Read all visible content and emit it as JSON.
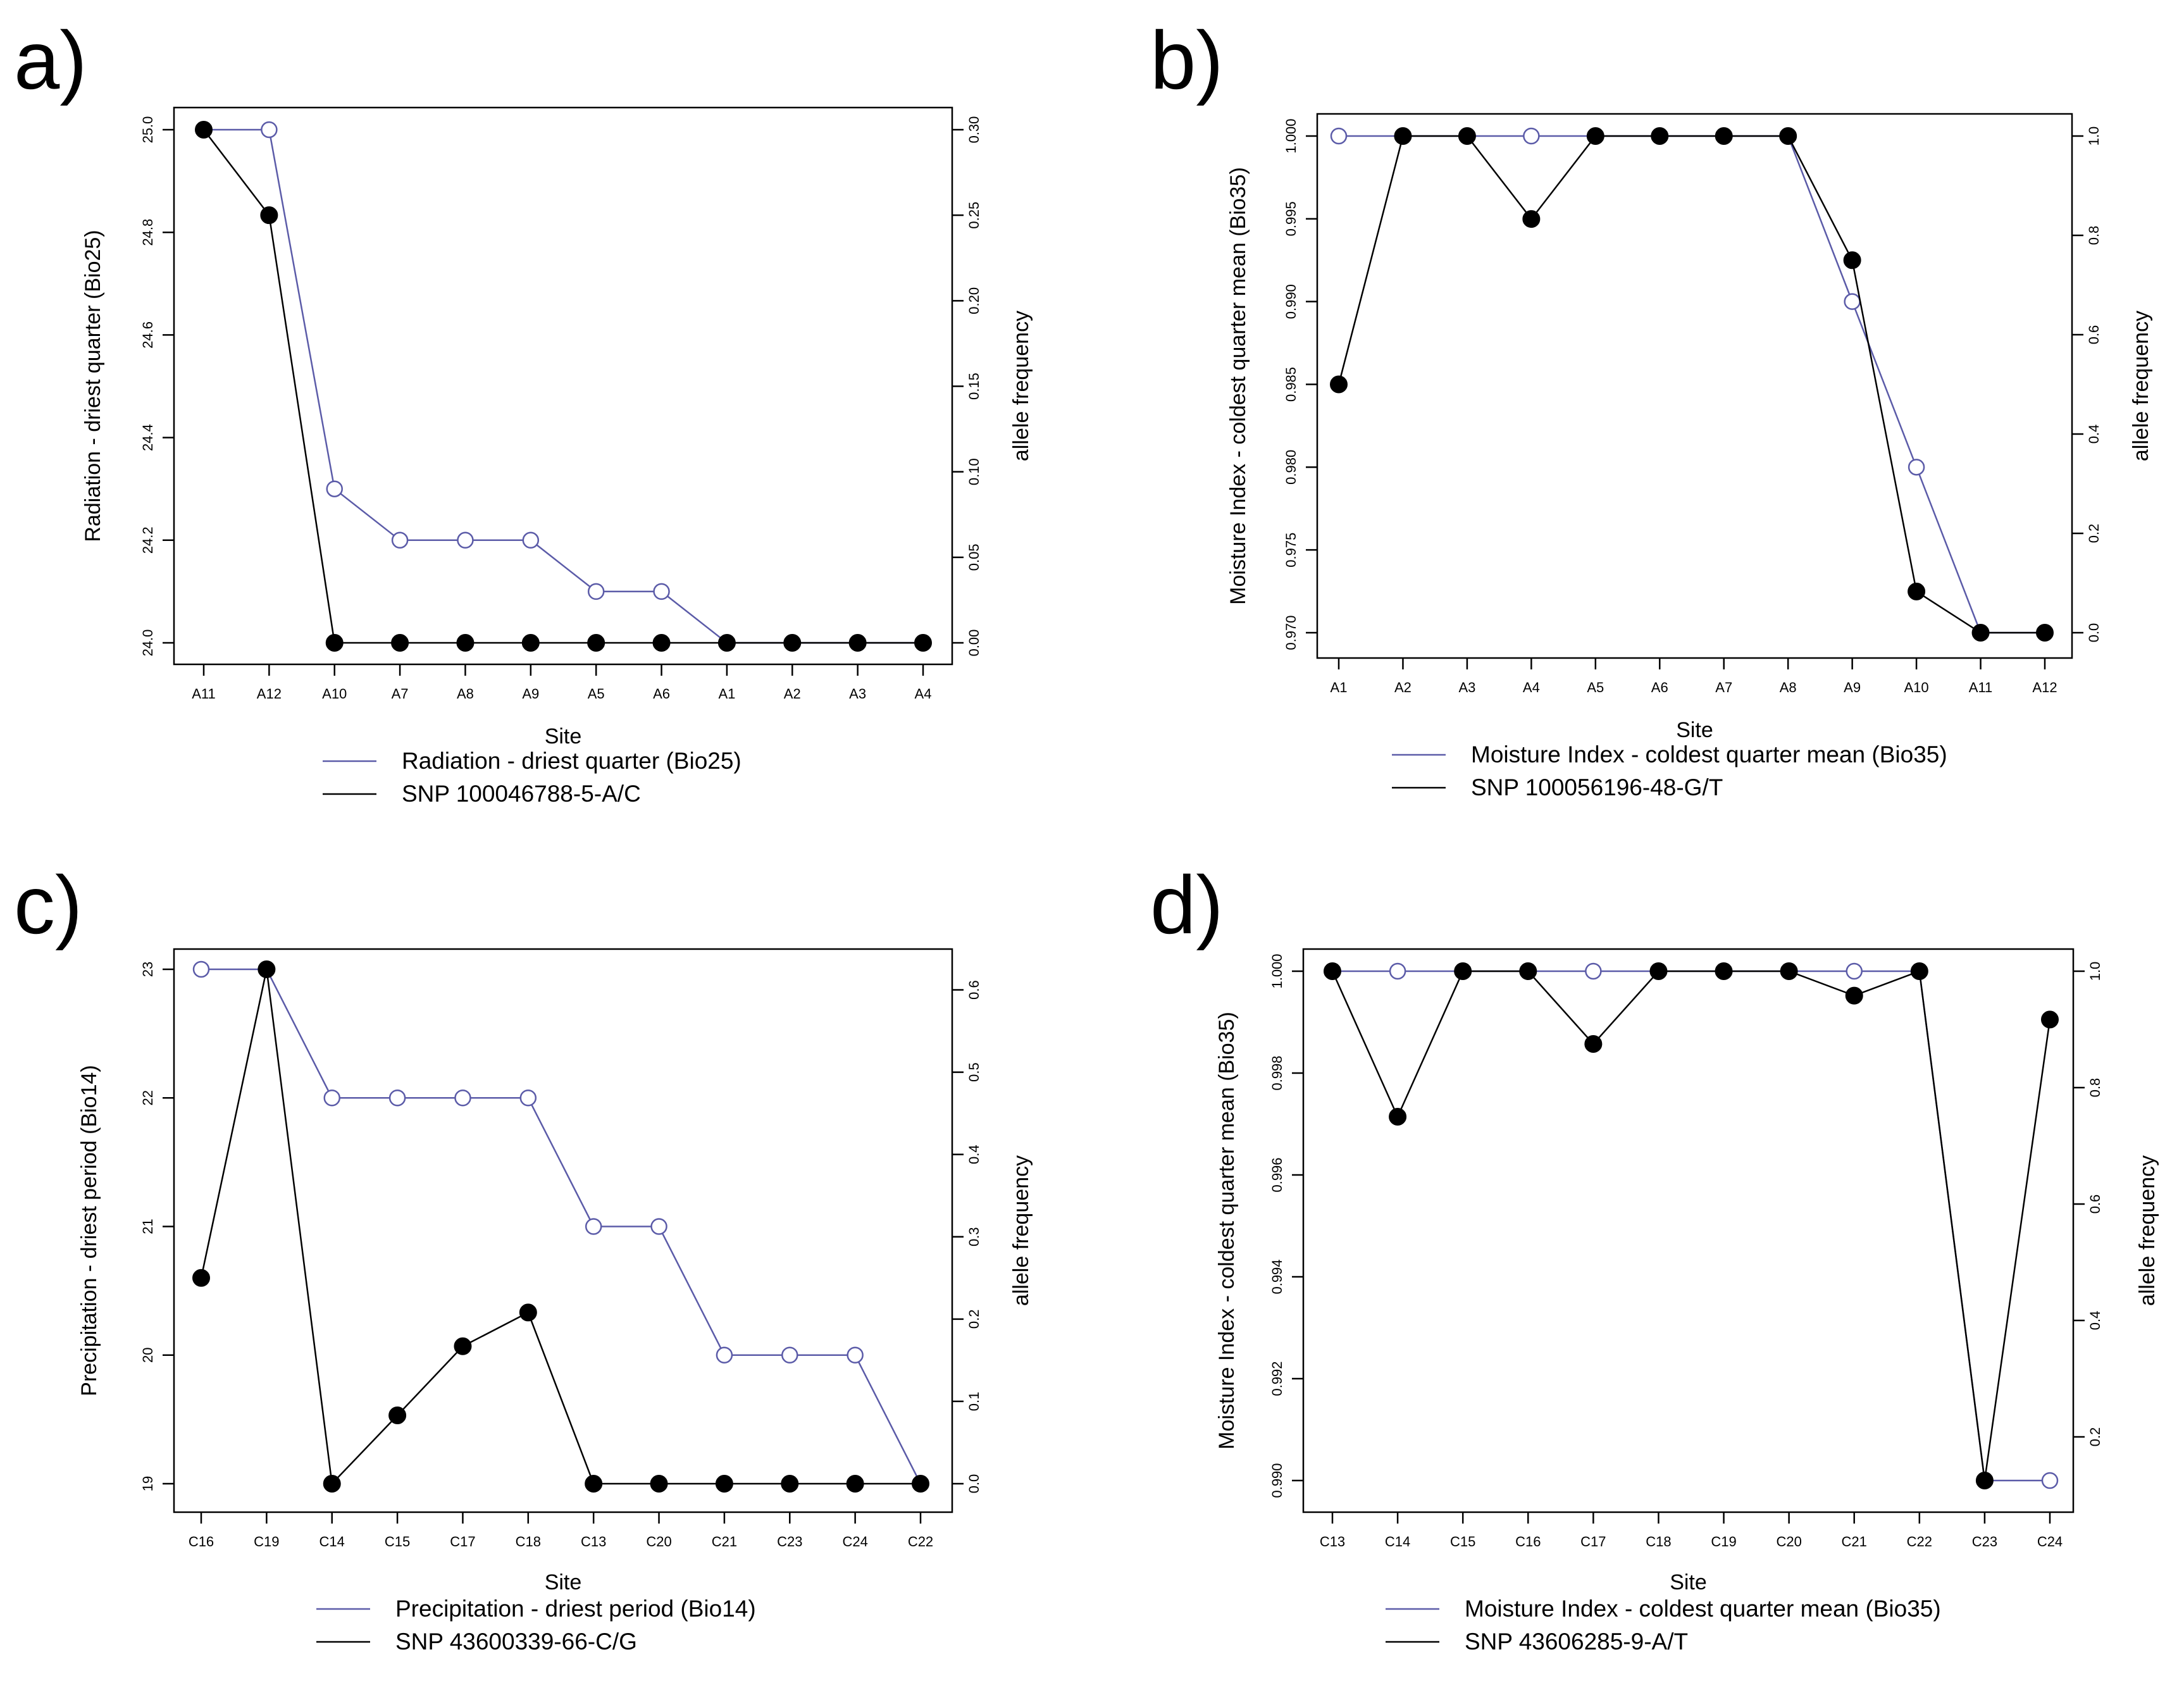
{
  "colors": {
    "bio_series": "#5b5ba8",
    "snp_series": "#000000",
    "open_marker_fill": "#ffffff"
  },
  "chart_data": [
    {
      "panel": "a)",
      "type": "line",
      "xlabel": "Site",
      "ylabel": "Radiation - driest quarter (Bio25)",
      "y2label": "allele frequency",
      "categories": [
        "A11",
        "A12",
        "A10",
        "A7",
        "A8",
        "A9",
        "A5",
        "A6",
        "A1",
        "A2",
        "A3",
        "A4"
      ],
      "ylim": [
        24.0,
        25.0
      ],
      "yticks": [
        "24.0",
        "24.2",
        "24.4",
        "24.6",
        "24.8",
        "25.0"
      ],
      "y2lim": [
        0.0,
        0.3
      ],
      "y2ticks": [
        "0.00",
        "0.05",
        "0.10",
        "0.15",
        "0.20",
        "0.25",
        "0.30"
      ],
      "series": [
        {
          "name": "Radiation - driest quarter (Bio25)",
          "axis": "left",
          "marker": "open",
          "values": [
            25.0,
            25.0,
            24.3,
            24.2,
            24.2,
            24.2,
            24.1,
            24.1,
            24.0,
            24.0,
            24.0,
            24.0
          ]
        },
        {
          "name": "SNP 100046788-5-A/C",
          "axis": "right",
          "marker": "filled",
          "values": [
            0.3,
            0.25,
            0.0,
            0.0,
            0.0,
            0.0,
            0.0,
            0.0,
            0.0,
            0.0,
            0.0,
            0.0
          ]
        }
      ]
    },
    {
      "panel": "b)",
      "type": "line",
      "xlabel": "Site",
      "ylabel": "Moisture Index - coldest quarter mean (Bio35)",
      "y2label": "allele frequency",
      "categories": [
        "A1",
        "A2",
        "A3",
        "A4",
        "A5",
        "A6",
        "A7",
        "A8",
        "A9",
        "A10",
        "A11",
        "A12"
      ],
      "ylim": [
        0.97,
        1.0
      ],
      "yticks": [
        "0.970",
        "0.975",
        "0.980",
        "0.985",
        "0.990",
        "0.995",
        "1.000"
      ],
      "y2lim": [
        0.0,
        1.0
      ],
      "y2ticks": [
        "0.0",
        "0.2",
        "0.4",
        "0.6",
        "0.8",
        "1.0"
      ],
      "series": [
        {
          "name": "Moisture Index - coldest quarter mean (Bio35)",
          "axis": "left",
          "marker": "open",
          "values": [
            1.0,
            1.0,
            1.0,
            1.0,
            1.0,
            1.0,
            1.0,
            1.0,
            0.99,
            0.98,
            0.97,
            0.97
          ]
        },
        {
          "name": "SNP 100056196-48-G/T",
          "axis": "right",
          "marker": "filled",
          "values": [
            0.5,
            1.0,
            1.0,
            0.833,
            1.0,
            1.0,
            1.0,
            1.0,
            0.75,
            0.083,
            0.0,
            0.0
          ]
        }
      ]
    },
    {
      "panel": "c)",
      "type": "line",
      "xlabel": "Site",
      "ylabel": "Precipitation - driest period (Bio14)",
      "y2label": "allele frequency",
      "categories": [
        "C16",
        "C19",
        "C14",
        "C15",
        "C17",
        "C18",
        "C13",
        "C20",
        "C21",
        "C23",
        "C24",
        "C22"
      ],
      "ylim": [
        19,
        23
      ],
      "yticks": [
        "19",
        "20",
        "21",
        "22",
        "23"
      ],
      "y2lim": [
        0.0,
        0.625
      ],
      "y2ticks": [
        "0.0",
        "0.1",
        "0.2",
        "0.3",
        "0.4",
        "0.5",
        "0.6"
      ],
      "series": [
        {
          "name": "Precipitation - driest period (Bio14)",
          "axis": "left",
          "marker": "open",
          "values": [
            23,
            23,
            22,
            22,
            22,
            22,
            21,
            21,
            20,
            20,
            20,
            19
          ]
        },
        {
          "name": "SNP 43600339-66-C/G",
          "axis": "right",
          "marker": "filled",
          "values": [
            0.25,
            0.625,
            0.0,
            0.083,
            0.167,
            0.208,
            0.0,
            0.0,
            0.0,
            0.0,
            0.0,
            0.0
          ]
        }
      ]
    },
    {
      "panel": "d)",
      "type": "line",
      "xlabel": "Site",
      "ylabel": "Moisture Index - coldest quarter mean (Bio35)",
      "y2label": "allele frequency",
      "categories": [
        "C13",
        "C14",
        "C15",
        "C16",
        "C17",
        "C18",
        "C19",
        "C20",
        "C21",
        "C22",
        "C23",
        "C24"
      ],
      "ylim": [
        0.99,
        1.0
      ],
      "yticks": [
        "0.990",
        "0.992",
        "0.994",
        "0.996",
        "0.998",
        "1.000"
      ],
      "y2lim": [
        0.125,
        1.0
      ],
      "y2ticks": [
        "0.2",
        "0.4",
        "0.6",
        "0.8",
        "1.0"
      ],
      "series": [
        {
          "name": "Moisture Index - coldest quarter mean (Bio35)",
          "axis": "left",
          "marker": "open",
          "values": [
            1.0,
            1.0,
            1.0,
            1.0,
            1.0,
            1.0,
            1.0,
            1.0,
            1.0,
            1.0,
            0.99,
            0.99
          ]
        },
        {
          "name": "SNP 43606285-9-A/T",
          "axis": "right",
          "marker": "filled",
          "values": [
            1.0,
            0.75,
            1.0,
            1.0,
            0.875,
            1.0,
            1.0,
            1.0,
            0.958,
            1.0,
            0.125,
            0.917
          ]
        }
      ]
    }
  ]
}
